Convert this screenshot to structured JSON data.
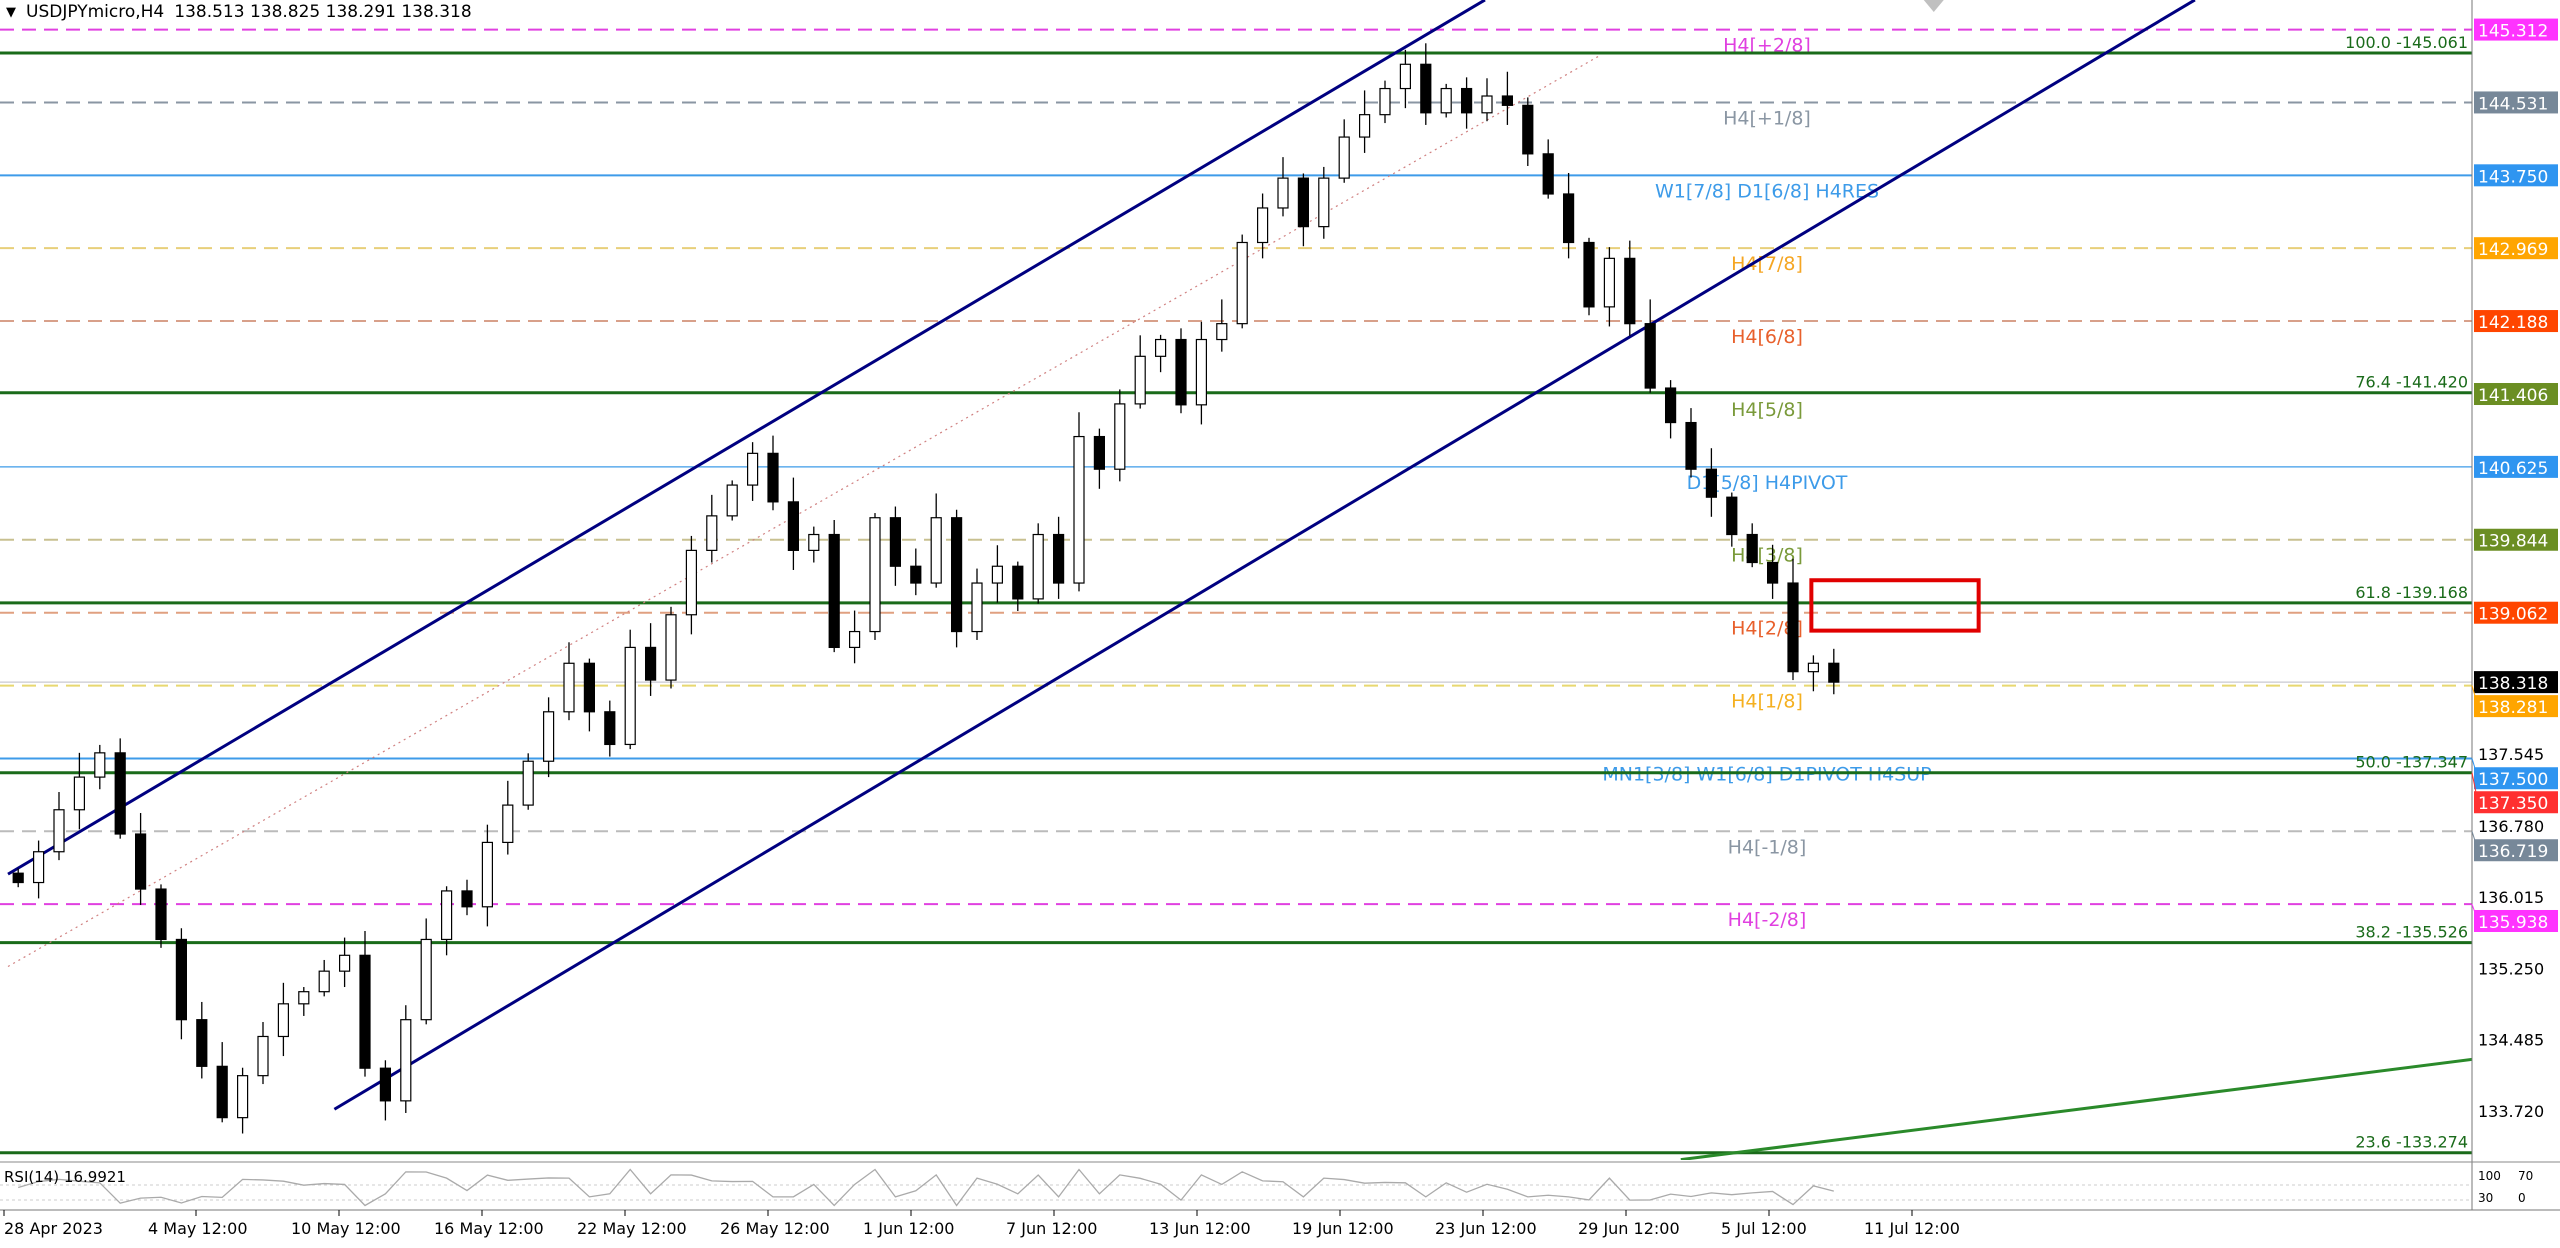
{
  "header": {
    "symbol": "USDJPYmicro,H4",
    "ohlc": "138.513 138.825 138.291 138.318",
    "menu_icon": "triangle-down-icon"
  },
  "rsi": {
    "label": "RSI(14) 16.9921",
    "value": 16.9921,
    "scale": [
      "100",
      "70",
      "30",
      "0"
    ]
  },
  "chart_data": {
    "type": "candlestick",
    "symbol": "USDJPYmicro",
    "timeframe": "H4",
    "ylim": [
      133.1,
      145.65
    ],
    "time_labels": [
      "28 Apr 2023",
      "4 May 12:00",
      "10 May 12:00",
      "16 May 12:00",
      "22 May 12:00",
      "26 May 12:00",
      "1 Jun 12:00",
      "7 Jun 12:00",
      "13 Jun 12:00",
      "19 Jun 12:00",
      "23 Jun 12:00",
      "29 Jun 12:00",
      "5 Jul 12:00",
      "11 Jul 12:00"
    ],
    "price_ticks": [
      "137.545",
      "136.780",
      "136.015",
      "135.250",
      "134.485",
      "133.720"
    ],
    "closes": [
      136.17,
      136.5,
      136.95,
      137.3,
      137.56,
      136.69,
      136.1,
      135.56,
      134.7,
      134.2,
      133.65,
      134.1,
      134.52,
      134.87,
      135.0,
      135.22,
      135.39,
      134.18,
      133.83,
      134.7,
      135.56,
      136.08,
      135.91,
      136.6,
      137.0,
      137.47,
      138.0,
      138.52,
      138.0,
      137.65,
      138.69,
      138.34,
      139.04,
      139.73,
      140.1,
      140.43,
      140.77,
      140.25,
      139.73,
      139.9,
      138.69,
      138.86,
      140.08,
      139.56,
      139.38,
      140.08,
      138.86,
      139.38,
      139.56,
      139.21,
      139.9,
      139.38,
      140.95,
      140.6,
      141.3,
      141.81,
      141.99,
      141.29,
      141.99,
      142.16,
      143.03,
      143.4,
      143.72,
      143.2,
      143.72,
      144.16,
      144.4,
      144.68,
      144.94,
      144.42,
      144.68,
      144.42,
      144.6,
      144.5,
      143.98,
      143.55,
      143.03,
      142.34,
      142.86,
      142.16,
      141.47,
      141.1,
      140.6,
      140.3,
      139.9,
      139.6,
      139.38,
      138.43,
      138.52,
      138.318
    ],
    "levels": [
      {
        "price": 145.312,
        "label": "H4[+2/8]",
        "color": "#e040e0",
        "style": "dashed",
        "axis_label": "145.312",
        "axis_bg": "#ff33ff"
      },
      {
        "price": 145.061,
        "label": "100.0 -145.061",
        "color": "#1a6b1a",
        "style": "fib"
      },
      {
        "price": 144.531,
        "label": "H4[+1/8]",
        "color": "#8a96a3",
        "style": "dashed",
        "axis_label": "144.531",
        "axis_bg": "#778899"
      },
      {
        "price": 143.75,
        "label": "W1[7/8] D1[6/8] H4RES",
        "color": "#3d9be9",
        "style": "solid",
        "axis_label": "143.750",
        "axis_bg": "#2f95f0"
      },
      {
        "price": 142.969,
        "label": "H4[7/8]",
        "color": "#f5a623",
        "style": "dashed",
        "line_color": "#e8cf7a",
        "axis_label": "142.969",
        "axis_bg": "#ffa500"
      },
      {
        "price": 142.188,
        "label": "H4[6/8]",
        "color": "#e8602c",
        "style": "dashed",
        "line_color": "#d8a08a",
        "axis_label": "142.188",
        "axis_bg": "#ff4500"
      },
      {
        "price": 141.42,
        "label": "76.4 -141.420",
        "color": "#1a6b1a",
        "style": "fib"
      },
      {
        "price": 141.406,
        "label": "H4[5/8]",
        "color": "#7a9a3a",
        "style": "none",
        "axis_label": "141.406",
        "axis_bg": "#6b8e23"
      },
      {
        "price": 140.625,
        "label": "D1[5/8] H4PIVOT",
        "color": "#3d9be9",
        "style": "thin",
        "axis_label": "140.625",
        "axis_bg": "#2f95f0"
      },
      {
        "price": 139.844,
        "label": "H4[3/8]",
        "color": "#7a9a3a",
        "style": "dashed",
        "line_color": "#c8c090",
        "axis_label": "139.844",
        "axis_bg": "#6b8e23"
      },
      {
        "price": 139.168,
        "label": "61.8 -139.168",
        "color": "#1a6b1a",
        "style": "fib"
      },
      {
        "price": 139.062,
        "label": "H4[2/8]",
        "color": "#e8602c",
        "style": "dashed",
        "line_color": "#e0a080",
        "axis_label": "139.062",
        "axis_bg": "#ff4500"
      },
      {
        "price": 138.318,
        "label": "",
        "color": "#c8c8d0",
        "style": "thin",
        "axis_label": "138.318",
        "axis_bg": "#000000"
      },
      {
        "price": 138.281,
        "label": "H4[1/8]",
        "color": "#f5b020",
        "style": "dashed",
        "line_color": "#e8d870",
        "axis_label": "138.281",
        "axis_bg": "#ffa500"
      },
      {
        "price": 137.5,
        "label": "MN1[3/8] W1[6/8] D1PIVOT H4SUP",
        "color": "#3d9be9",
        "style": "solid",
        "axis_label": "137.500",
        "axis_bg": "#2f95f0"
      },
      {
        "price": 137.347,
        "label": "50.0 -137.347",
        "color": "#1a6b1a",
        "style": "fib",
        "axis_label": "137.350",
        "axis_bg": "#ff3030"
      },
      {
        "price": 136.719,
        "label": "H4[-1/8]",
        "color": "#8a96a3",
        "style": "dashed",
        "line_color": "#bbbbbb",
        "axis_label": "136.719",
        "axis_bg": "#778899"
      },
      {
        "price": 135.938,
        "label": "H4[-2/8]",
        "color": "#e040e0",
        "style": "dashed",
        "axis_label": "135.938",
        "axis_bg": "#ff33ff"
      },
      {
        "price": 135.526,
        "label": "38.2 -135.526",
        "color": "#1a6b1a",
        "style": "fib"
      },
      {
        "price": 133.274,
        "label": "23.6 -133.274",
        "color": "#1a6b1a",
        "style": "fib"
      }
    ],
    "trendlines": [
      {
        "name": "channel-upper",
        "color": "#000080",
        "from": {
          "bar": 0,
          "price": 136.26
        },
        "to": {
          "bar": 72.4,
          "price": 145.63
        }
      },
      {
        "name": "channel-lower",
        "color": "#000080",
        "from": {
          "bar": 16,
          "price": 133.74
        },
        "to": {
          "bar": 107.2,
          "price": 145.63
        }
      },
      {
        "name": "channel-mid",
        "color": "#d08080",
        "dotted": true,
        "from": {
          "bar": 0,
          "price": 135.27
        },
        "to": {
          "bar": 78,
          "price": 145.03
        }
      },
      {
        "name": "green-trendline",
        "color": "#2a8a2a",
        "from": {
          "bar": 82,
          "price": 133.2
        },
        "to": {
          "bar": 121,
          "price": 134.28
        }
      }
    ],
    "zone": {
      "color": "#e00000",
      "from_bar": 88.4,
      "to_bar": 96.6,
      "top": 139.41,
      "bottom": 138.87
    },
    "marker": {
      "icon": "triangle-down-icon",
      "color": "#c0c0c0",
      "bar": 94.4
    }
  }
}
